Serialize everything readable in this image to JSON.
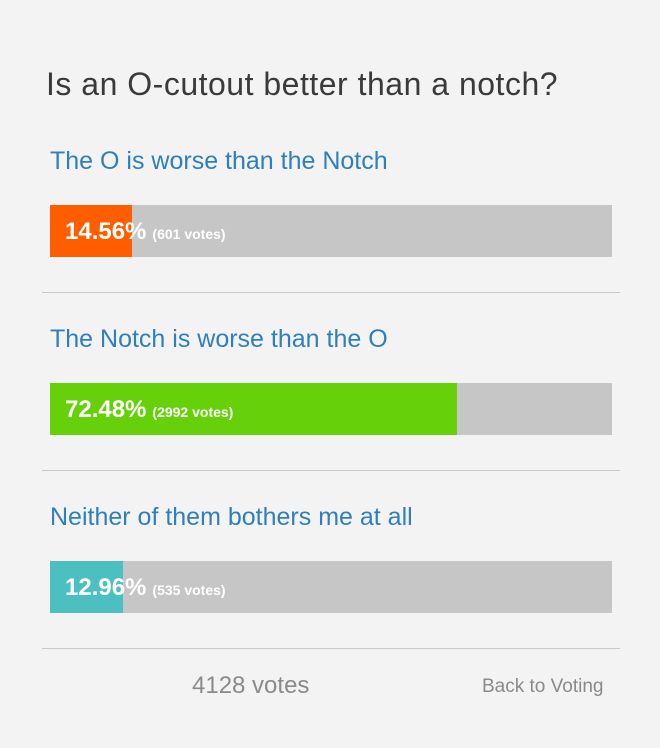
{
  "title": "Is an O-cutout better than a notch?",
  "options": [
    {
      "label": "The O is worse than the Notch",
      "percent": {
        "value": 14.56,
        "label": "14.56%"
      },
      "votes": "(601 votes)",
      "color": "#ff5e00"
    },
    {
      "label": "The Notch is worse than the O",
      "percent": {
        "value": 72.48,
        "label": "72.48%"
      },
      "votes": "(2992 votes)",
      "color": "#66d10a"
    },
    {
      "label": "Neither of them bothers me at all",
      "percent": {
        "value": 12.96,
        "label": "12.96%"
      },
      "votes": "(535 votes)",
      "color": "#4cbfc0"
    }
  ],
  "footer": {
    "total": "4128 votes",
    "back": "Back to Voting"
  }
}
